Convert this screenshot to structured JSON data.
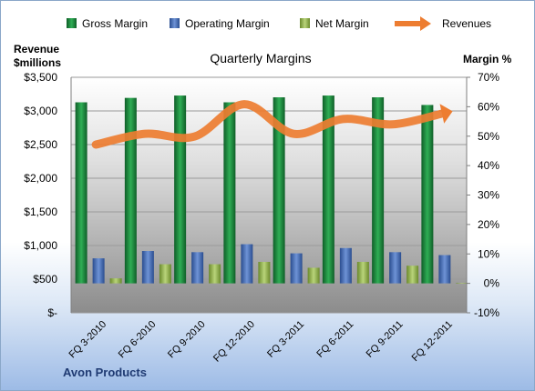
{
  "chart_data": {
    "type": "bar",
    "title": "Quarterly Margins",
    "company_label": "Avon Products",
    "y_left_label_line1": "Revenue",
    "y_left_label_line2": "$millions",
    "y_right_label": "Margin %",
    "categories": [
      "FQ 3-2010",
      "FQ 6-2010",
      "FQ 9-2010",
      "FQ 12-2010",
      "FQ 3-2011",
      "FQ 6-2011",
      "FQ 9-2011",
      "FQ 12-2011"
    ],
    "y_left_ticks": [
      "$-",
      "$500",
      "$1,000",
      "$1,500",
      "$2,000",
      "$2,500",
      "$3,000",
      "$3,500"
    ],
    "y_left_range": [
      0,
      3500
    ],
    "y_right_ticks": [
      "-10%",
      "0%",
      "10%",
      "20%",
      "30%",
      "40%",
      "50%",
      "60%",
      "70%"
    ],
    "y_right_range": [
      -10,
      70
    ],
    "series": [
      {
        "name": "Gross Margin",
        "axis": "right",
        "kind": "bar",
        "color": "#1f8a3c",
        "values": [
          61.5,
          63.0,
          63.8,
          61.5,
          63.2,
          63.8,
          63.2,
          60.6
        ]
      },
      {
        "name": "Operating Margin",
        "axis": "right",
        "kind": "bar",
        "color": "#4a72b8",
        "values": [
          8.5,
          11.0,
          10.6,
          13.3,
          10.2,
          12.0,
          10.6,
          9.6
        ]
      },
      {
        "name": "Net Margin",
        "axis": "right",
        "kind": "bar",
        "color": "#9bbb59",
        "values": [
          1.7,
          6.5,
          6.5,
          7.3,
          5.3,
          7.3,
          6.0,
          0.2
        ]
      },
      {
        "name": "Revenues",
        "axis": "left",
        "kind": "line",
        "color": "#ed7d31",
        "values": [
          2500,
          2660,
          2620,
          3100,
          2660,
          2880,
          2800,
          2960
        ]
      }
    ],
    "grid": "horizontal",
    "legend_position": "top"
  }
}
